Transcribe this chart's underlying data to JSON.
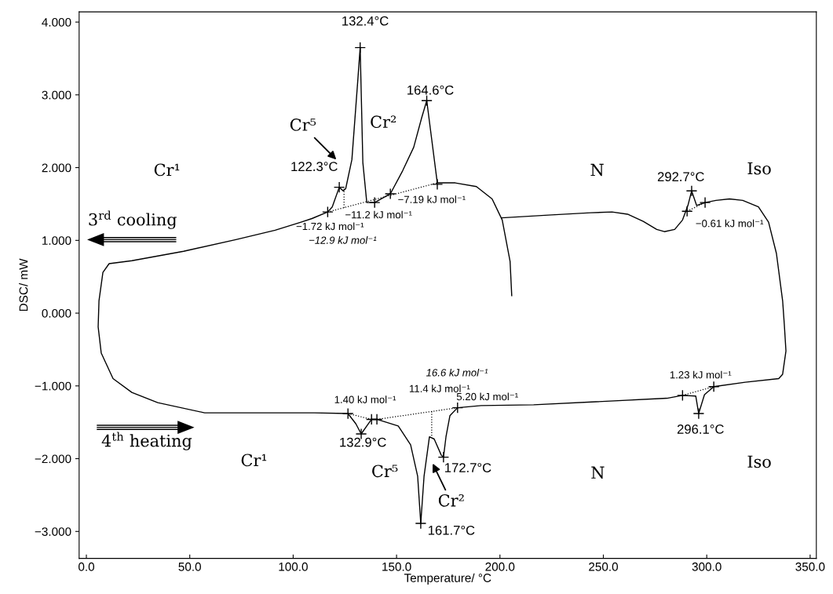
{
  "chart_data": {
    "type": "line",
    "xlabel": "Temperature/ °C",
    "ylabel": "DSC/ mW",
    "xlim": [
      -3.5,
      353
    ],
    "ylim": [
      -3.37,
      4.14
    ],
    "xticks": [
      {
        "value": 0,
        "label": "0.0"
      },
      {
        "value": 50,
        "label": "50.0"
      },
      {
        "value": 100,
        "label": "100.0"
      },
      {
        "value": 150,
        "label": "150.0"
      },
      {
        "value": 200,
        "label": "200.0"
      },
      {
        "value": 250,
        "label": "250.0"
      },
      {
        "value": 300,
        "label": "300.0"
      },
      {
        "value": 350,
        "label": "350.0"
      }
    ],
    "yticks": [
      {
        "value": 4,
        "label": "4.000"
      },
      {
        "value": 3,
        "label": "3.000"
      },
      {
        "value": 2,
        "label": "2.000"
      },
      {
        "value": 1,
        "label": "1.000"
      },
      {
        "value": 0,
        "label": "0.000"
      },
      {
        "value": -1,
        "label": "−1.000"
      },
      {
        "value": -2,
        "label": "−2.000"
      },
      {
        "value": -3,
        "label": "−3.000"
      }
    ],
    "series": [
      {
        "color": "#000000",
        "line_style": "solid",
        "x": [
          205.7,
          204.9,
          201.1,
          196.2,
          188.6,
          178.4,
          169.7,
          164.6,
          162.1,
          158.3,
          153.0,
          147.0,
          139.4,
          135.6,
          133.7,
          132.4,
          131.1,
          128.4,
          125.4,
          124.2,
          122.3,
          118.9,
          116.7,
          109.1,
          103.8,
          91.3,
          72.3,
          47.0,
          22.0,
          11.0,
          8.0,
          6.1,
          5.7,
          7.2,
          12.9,
          22.0,
          34.5,
          57.2,
          110.2,
          126.5,
          130.3,
          132.9,
          135.6,
          137.9,
          140.5,
          150.8,
          156.8,
          160.2,
          161.7,
          163.3,
          165.9,
          168.2,
          171.6,
          172.7,
          173.9,
          175.8,
          179.5,
          190.9,
          216.3,
          280.7,
          288.3,
          294.7,
          296.1,
          298.9,
          303.4,
          318.6,
          334.8,
          336.7,
          338.3,
          337.5,
          336.7,
          333.7,
          329.9,
          325.0,
          317.4,
          311.0,
          304.5,
          299.2,
          295.1,
          292.7,
          290.9,
          288.3,
          284.5,
          279.5,
          275.8,
          269.3,
          261.7,
          254.2,
          243.9,
          225.0,
          201.1
        ],
        "values": [
          0.24,
          0.71,
          1.28,
          1.57,
          1.74,
          1.79,
          1.79,
          2.92,
          2.68,
          2.28,
          1.96,
          1.64,
          1.52,
          1.52,
          2.07,
          3.65,
          3.14,
          2.11,
          1.71,
          1.68,
          1.73,
          1.46,
          1.39,
          1.3,
          1.25,
          1.14,
          1.01,
          0.85,
          0.72,
          0.68,
          0.56,
          0.17,
          -0.19,
          -0.55,
          -0.9,
          -1.09,
          -1.23,
          -1.37,
          -1.37,
          -1.38,
          -1.52,
          -1.66,
          -1.55,
          -1.46,
          -1.46,
          -1.55,
          -1.81,
          -2.24,
          -2.89,
          -2.24,
          -1.7,
          -1.73,
          -1.95,
          -1.98,
          -1.7,
          -1.41,
          -1.3,
          -1.27,
          -1.26,
          -1.17,
          -1.13,
          -1.14,
          -1.38,
          -1.12,
          -1.01,
          -0.95,
          -0.9,
          -0.84,
          -0.52,
          -0.15,
          0.17,
          0.82,
          1.25,
          1.46,
          1.55,
          1.57,
          1.55,
          1.52,
          1.48,
          1.68,
          1.48,
          1.28,
          1.15,
          1.12,
          1.15,
          1.26,
          1.36,
          1.39,
          1.38,
          1.35,
          1.31
        ]
      },
      {
        "color": "#000000",
        "line_style": "dotted",
        "x": [
          116.7,
          169.7
        ],
        "values": [
          1.39,
          1.79
        ]
      },
      {
        "color": "#000000",
        "line_style": "dotted",
        "x": [
          124.6,
          124.6
        ],
        "values": [
          1.71,
          1.43
        ]
      },
      {
        "color": "#000000",
        "line_style": "dotted",
        "x": [
          290.5,
          299.2
        ],
        "values": [
          1.4,
          1.52
        ]
      },
      {
        "color": "#000000",
        "line_style": "dotted",
        "x": [
          126.5,
          137.9
        ],
        "values": [
          -1.38,
          -1.46
        ]
      },
      {
        "color": "#000000",
        "line_style": "dotted",
        "x": [
          140.5,
          179.5
        ],
        "values": [
          -1.46,
          -1.3
        ]
      },
      {
        "color": "#000000",
        "line_style": "dotted",
        "x": [
          167.0,
          167.0
        ],
        "values": [
          -1.35,
          -1.69
        ]
      },
      {
        "color": "#000000",
        "line_style": "dotted",
        "x": [
          288.3,
          303.4
        ],
        "values": [
          -1.13,
          -1.01
        ]
      },
      {
        "type": "scatter",
        "color": "#000000",
        "marker": "cross",
        "x": [
          116.7,
          122.3,
          132.4,
          139.4,
          147.0,
          164.6,
          169.7,
          290.5,
          292.7,
          299.2,
          126.5,
          132.9,
          137.9,
          140.5,
          161.7,
          172.7,
          179.5,
          288.3,
          296.1,
          303.4
        ],
        "values": [
          1.39,
          1.73,
          3.65,
          1.52,
          1.64,
          2.92,
          1.77,
          1.4,
          1.68,
          1.52,
          -1.38,
          -1.66,
          -1.46,
          -1.46,
          -2.89,
          -1.98,
          -1.3,
          -1.13,
          -1.38,
          -1.01
        ]
      }
    ],
    "annotations": [
      "132.4°C",
      "164.6°C",
      "122.3°C",
      "Cr⁵",
      "Cr²",
      "Cr¹",
      "N",
      "Iso",
      "292.7°C",
      "−0.61 kJ mol⁻¹",
      "−7.19 kJ mol⁻¹",
      "−11.2 kJ mol⁻¹",
      "−1.72 kJ mol⁻¹",
      "−12.9 kJ mol⁻¹",
      "3$^{rd}$ cooling",
      "4$^{th}$ heating",
      "1.40 kJ mol⁻¹",
      "132.9°C",
      "16.6 kJ mol⁻¹",
      "11.4 kJ mol⁻¹",
      "5.20 kJ mol⁻¹",
      "172.7°C",
      "161.7°C",
      "Cr²",
      "Cr⁵",
      "Cr¹",
      "N",
      "Iso",
      "1.23 kJ mol⁻¹",
      "296.1°C"
    ]
  }
}
